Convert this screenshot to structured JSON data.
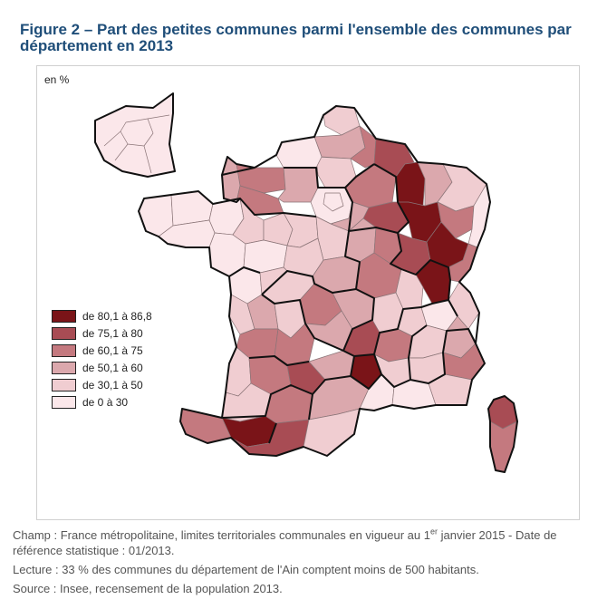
{
  "figure": {
    "title": "Figure 2 – Part des petites communes parmi l'ensemble des communes par département en 2013",
    "unit": "en %"
  },
  "legend": [
    {
      "label": "de 80,1 à 86,8",
      "color": "#7a1418"
    },
    {
      "label": "de 75,1 à 80",
      "color": "#a84c54"
    },
    {
      "label": "de 60,1 à 75",
      "color": "#c4797f"
    },
    {
      "label": "de 50,1 à 60",
      "color": "#dba8ad"
    },
    {
      "label": "de 30,1 à 50",
      "color": "#f0cdd1"
    },
    {
      "label": "de 0 à 30",
      "color": "#fbe7ea"
    }
  ],
  "notes": {
    "champ_before": "Champ : France métropolitaine, limites territoriales communales en vigueur au 1",
    "champ_sup": "er",
    "champ_after": " janvier 2015 - Date de référence statistique : 01/2013.",
    "lecture": "Lecture : 33 % des communes du département de l'Ain comptent moins de 500 habitants.",
    "source": "Source : Insee, recensement de la population 2013."
  }
}
